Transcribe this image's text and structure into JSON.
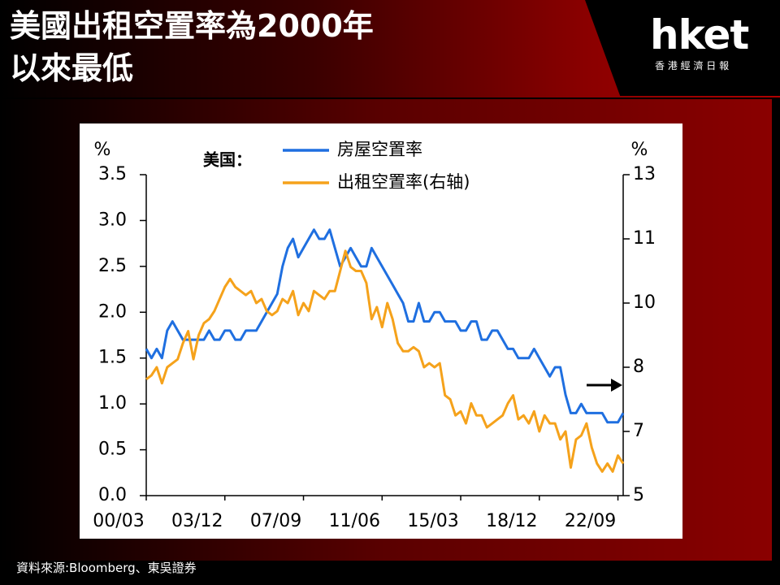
{
  "header": {
    "title_lines": [
      "美國出租空置率為2000年",
      "以來最低"
    ],
    "logo": "hket",
    "logo_subtitle": "香 港 經 濟 日 報"
  },
  "source": "資料來源:Bloomberg、東吳證券",
  "chart_data": {
    "type": "line",
    "y_label": "%",
    "y2_label": "%",
    "legend_title": "美国：",
    "categories": [
      "00/03",
      null,
      null,
      null,
      null,
      null,
      null,
      null,
      null,
      null,
      null,
      null,
      null,
      null,
      null,
      "03/12",
      null,
      null,
      null,
      null,
      null,
      null,
      null,
      null,
      null,
      null,
      null,
      null,
      null,
      null,
      "07/09",
      null,
      null,
      null,
      null,
      null,
      null,
      null,
      null,
      null,
      null,
      null,
      null,
      null,
      null,
      "11/06",
      null,
      null,
      null,
      null,
      null,
      null,
      null,
      null,
      null,
      null,
      null,
      null,
      null,
      null,
      "15/03",
      null,
      null,
      null,
      null,
      null,
      null,
      null,
      null,
      null,
      null,
      null,
      null,
      null,
      null,
      "18/12",
      null,
      null,
      null,
      null,
      null,
      null,
      null,
      null,
      null,
      null,
      null,
      null,
      null,
      null,
      "22/09",
      null
    ],
    "series": [
      {
        "name": "房屋空置率",
        "color": "#1f6fe0",
        "values": [
          1.6,
          1.5,
          1.6,
          1.5,
          1.8,
          1.9,
          1.8,
          1.7,
          1.7,
          1.7,
          1.7,
          1.7,
          1.8,
          1.7,
          1.7,
          1.8,
          1.8,
          1.7,
          1.7,
          1.8,
          1.8,
          1.8,
          1.9,
          2.0,
          2.1,
          2.2,
          2.5,
          2.7,
          2.8,
          2.6,
          2.7,
          2.8,
          2.9,
          2.8,
          2.8,
          2.9,
          2.7,
          2.5,
          2.6,
          2.7,
          2.6,
          2.5,
          2.5,
          2.7,
          2.6,
          2.5,
          2.4,
          2.3,
          2.2,
          2.1,
          1.9,
          1.9,
          2.1,
          1.9,
          1.9,
          2.0,
          2.0,
          1.9,
          1.9,
          1.9,
          1.8,
          1.8,
          1.9,
          1.9,
          1.7,
          1.7,
          1.8,
          1.8,
          1.7,
          1.6,
          1.6,
          1.5,
          1.5,
          1.5,
          1.6,
          1.5,
          1.4,
          1.3,
          1.4,
          1.4,
          1.1,
          0.9,
          0.9,
          1.0,
          0.9,
          0.9,
          0.9,
          0.9,
          0.8,
          0.8,
          0.8,
          0.9
        ]
      },
      {
        "name": "出租空置率(右轴)",
        "color": "#f5a21b",
        "axis": "y2",
        "values": [
          7.9,
          8.0,
          8.2,
          7.8,
          8.2,
          8.3,
          8.4,
          8.8,
          9.1,
          8.4,
          9.0,
          9.3,
          9.4,
          9.6,
          9.9,
          10.2,
          10.4,
          10.2,
          10.1,
          10.0,
          10.1,
          9.8,
          9.9,
          9.6,
          9.5,
          9.6,
          9.9,
          9.8,
          10.1,
          9.5,
          9.8,
          9.6,
          10.1,
          10.0,
          9.9,
          10.1,
          10.1,
          10.6,
          11.1,
          10.7,
          10.6,
          10.6,
          10.3,
          9.4,
          9.7,
          9.2,
          9.8,
          9.4,
          8.8,
          8.6,
          8.6,
          8.7,
          8.6,
          8.2,
          8.3,
          8.2,
          8.3,
          7.5,
          7.4,
          7.0,
          7.1,
          6.8,
          7.3,
          7.0,
          7.0,
          6.7,
          6.8,
          6.9,
          7.0,
          7.3,
          7.5,
          6.9,
          7.0,
          6.8,
          7.1,
          6.6,
          7.0,
          6.8,
          6.8,
          6.4,
          6.6,
          5.7,
          6.4,
          6.5,
          6.8,
          6.2,
          5.8,
          5.6,
          5.8,
          5.6,
          6.0,
          5.8
        ]
      }
    ],
    "ylim": [
      0,
      3.5
    ],
    "yticks": [
      {
        "value": 0,
        "label": "0.0"
      },
      0.5,
      {
        "value": 1,
        "label": "1.0"
      },
      1.5,
      {
        "value": 2,
        "label": "2.0"
      },
      2.5,
      {
        "value": 3,
        "label": "3.0"
      },
      3.5
    ],
    "y2lim": [
      5,
      13
    ],
    "y2ticks": [
      5,
      {
        "value": 6.6,
        "label": "7"
      },
      {
        "value": 8.2,
        "label": "8"
      },
      {
        "value": 9.8,
        "label": "10"
      },
      {
        "value": 11.4,
        "label": "11"
      },
      13
    ],
    "grid": false
  }
}
